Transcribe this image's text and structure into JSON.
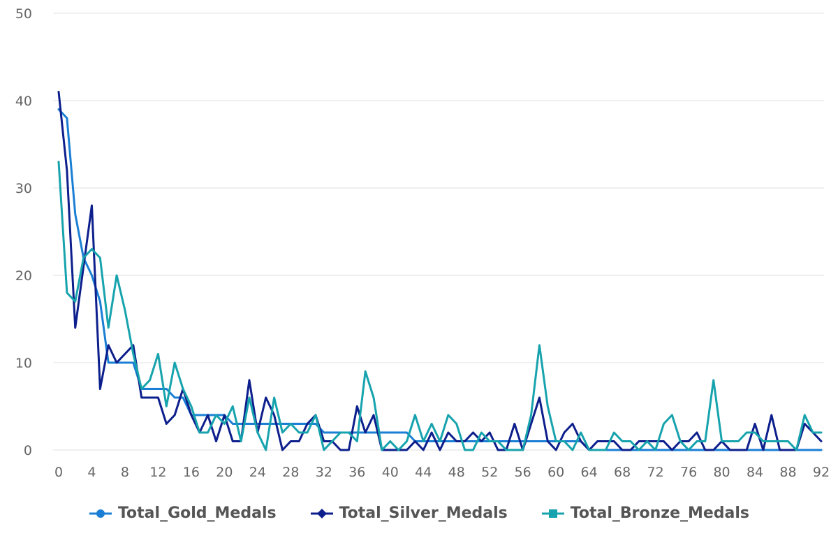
{
  "chart_data": {
    "type": "line",
    "x_ticks": [
      "0",
      "4",
      "8",
      "12",
      "16",
      "20",
      "24",
      "28",
      "32",
      "36",
      "40",
      "44",
      "48",
      "52",
      "56",
      "60",
      "64",
      "68",
      "72",
      "76",
      "80",
      "84",
      "88",
      "92"
    ],
    "y_ticks": [
      "0",
      "10",
      "20",
      "30",
      "40",
      "50"
    ],
    "xlim": [
      0,
      92
    ],
    "ylim": [
      0,
      50
    ],
    "grid": "horizontal",
    "legend_position": "bottom",
    "series": [
      {
        "name": "Total_Gold_Medals",
        "color": "#1a7fd4",
        "marker": "circle",
        "values": [
          39,
          38,
          27,
          22,
          20,
          17,
          10,
          10,
          10,
          10,
          7,
          7,
          7,
          7,
          6,
          6,
          4,
          4,
          4,
          4,
          4,
          3,
          3,
          3,
          3,
          3,
          3,
          3,
          3,
          3,
          3,
          3,
          2,
          2,
          2,
          2,
          2,
          2,
          2,
          2,
          2,
          2,
          2,
          1,
          1,
          1,
          1,
          1,
          1,
          1,
          1,
          1,
          1,
          1,
          1,
          1,
          1,
          1,
          1,
          1,
          1,
          1,
          1,
          1,
          0,
          0,
          0,
          0,
          0,
          0,
          0,
          0,
          0,
          0,
          0,
          0,
          0,
          0,
          0,
          0,
          0,
          0,
          0,
          0,
          0,
          0,
          0,
          0,
          0,
          0,
          0,
          0,
          0
        ]
      },
      {
        "name": "Total_Silver_Medals",
        "color": "#0d1f8c",
        "marker": "diamond",
        "values": [
          41,
          32,
          14,
          21,
          28,
          7,
          12,
          10,
          11,
          12,
          6,
          6,
          6,
          3,
          4,
          7,
          4,
          2,
          4,
          1,
          4,
          1,
          1,
          8,
          2,
          6,
          4,
          0,
          1,
          1,
          3,
          4,
          1,
          1,
          0,
          0,
          5,
          2,
          4,
          0,
          0,
          0,
          0,
          1,
          0,
          2,
          0,
          2,
          1,
          1,
          2,
          1,
          2,
          0,
          0,
          3,
          0,
          3,
          6,
          1,
          0,
          2,
          3,
          1,
          0,
          1,
          1,
          1,
          0,
          0,
          1,
          1,
          1,
          1,
          0,
          1,
          1,
          2,
          0,
          0,
          1,
          0,
          0,
          0,
          3,
          0,
          4,
          0,
          0,
          0,
          3,
          2,
          1
        ]
      },
      {
        "name": "Total_Bronze_Medals",
        "color": "#17a3ad",
        "marker": "square",
        "values": [
          33,
          18,
          17,
          22,
          23,
          22,
          14,
          20,
          16,
          11,
          7,
          8,
          11,
          5,
          10,
          7,
          5,
          2,
          2,
          4,
          3,
          5,
          1,
          6,
          2,
          0,
          6,
          2,
          3,
          2,
          2,
          4,
          0,
          1,
          2,
          2,
          1,
          9,
          6,
          0,
          1,
          0,
          1,
          4,
          1,
          3,
          1,
          4,
          3,
          0,
          0,
          2,
          1,
          1,
          0,
          0,
          0,
          4,
          12,
          5,
          1,
          1,
          0,
          2,
          0,
          0,
          0,
          2,
          1,
          1,
          0,
          1,
          0,
          3,
          4,
          1,
          0,
          1,
          1,
          8,
          1,
          1,
          1,
          2,
          2,
          1,
          1,
          1,
          1,
          0,
          4,
          2,
          2
        ]
      }
    ]
  }
}
